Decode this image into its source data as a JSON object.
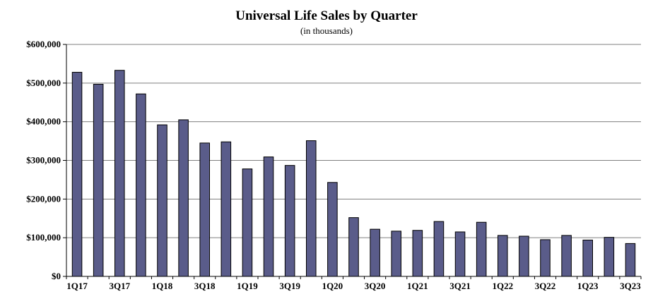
{
  "chart_data": {
    "type": "bar",
    "title": "Universal Life Sales by Quarter",
    "subtitle": "(in thousands)",
    "xlabel": "",
    "ylabel": "",
    "ylim": [
      0,
      600000
    ],
    "yticks": [
      0,
      100000,
      200000,
      300000,
      400000,
      500000,
      600000
    ],
    "ytick_labels": [
      "$0",
      "$100,000",
      "$200,000",
      "$300,000",
      "$400,000",
      "$500,000",
      "$600,000"
    ],
    "categories": [
      "1Q17",
      "2Q17",
      "3Q17",
      "4Q17",
      "1Q18",
      "2Q18",
      "3Q18",
      "4Q18",
      "1Q19",
      "2Q19",
      "3Q19",
      "4Q19",
      "1Q20",
      "2Q20",
      "3Q20",
      "4Q20",
      "1Q21",
      "2Q21",
      "3Q21",
      "4Q21",
      "1Q22",
      "2Q22",
      "3Q22",
      "4Q22",
      "1Q23",
      "2Q23",
      "3Q23"
    ],
    "xtick_labels": [
      "1Q17",
      "",
      "3Q17",
      "",
      "1Q18",
      "",
      "3Q18",
      "",
      "1Q19",
      "",
      "3Q19",
      "",
      "1Q20",
      "",
      "3Q20",
      "",
      "1Q21",
      "",
      "3Q21",
      "",
      "1Q22",
      "",
      "3Q22",
      "",
      "1Q23",
      "",
      "3Q23"
    ],
    "values": [
      528000,
      497000,
      533000,
      472000,
      392000,
      405000,
      345000,
      348000,
      278000,
      309000,
      287000,
      351000,
      243000,
      152000,
      122000,
      117000,
      119000,
      142000,
      115000,
      140000,
      106000,
      104000,
      95000,
      106000,
      94000,
      101000,
      85000
    ],
    "grid": true,
    "bar_color": "#5a5c8a",
    "bar_edge_color": "#000000"
  }
}
